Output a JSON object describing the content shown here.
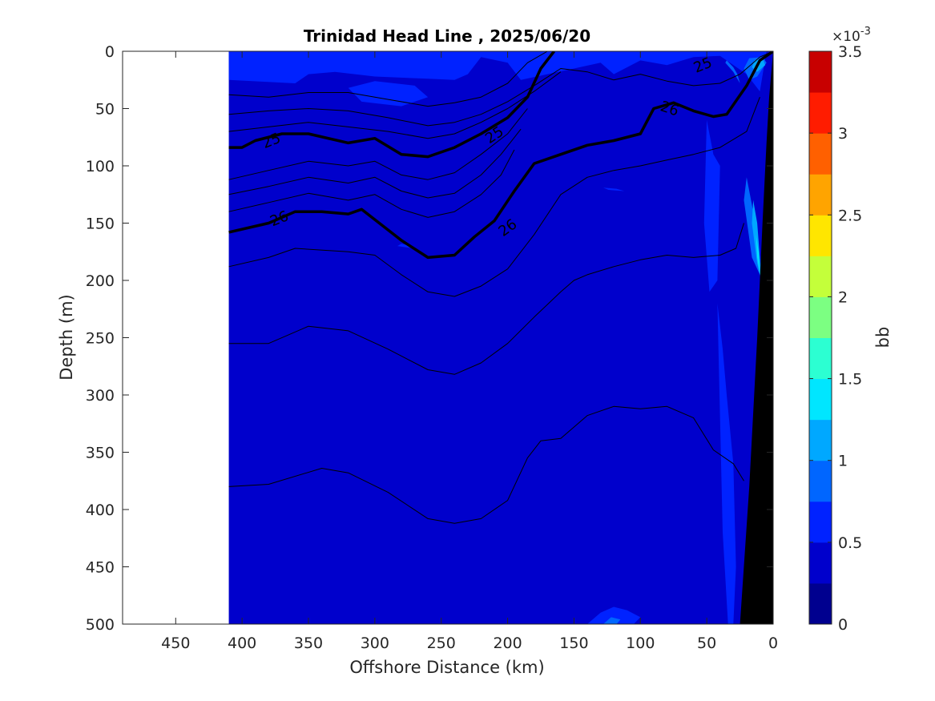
{
  "chart_data": {
    "type": "heatmap",
    "title": "Trinidad Head Line , 2025/06/20",
    "xlabel": "Offshore Distance (km)",
    "ylabel": "Depth (m)",
    "xlim": [
      490,
      0
    ],
    "ylim": [
      0,
      500
    ],
    "x_ticks": [
      "450",
      "400",
      "350",
      "300",
      "250",
      "200",
      "150",
      "100",
      "50",
      "0"
    ],
    "y_ticks": [
      "0",
      "50",
      "100",
      "150",
      "200",
      "250",
      "300",
      "350",
      "400",
      "450",
      "500"
    ],
    "data_x_extent": [
      410,
      0
    ],
    "colorbar": {
      "label": "bb",
      "exponent_label": "×10",
      "exponent_power": "-3",
      "range": [
        0,
        3.5
      ],
      "ticks": [
        "0",
        "0.5",
        "1",
        "1.5",
        "2",
        "2.5",
        "3",
        "3.5"
      ],
      "levels": 14,
      "colormap": [
        "#00008f",
        "#0000cc",
        "#0022ff",
        "#0066ff",
        "#00a8ff",
        "#00e6ff",
        "#2cffd2",
        "#7cff82",
        "#c4ff3a",
        "#ffe600",
        "#ffa400",
        "#ff6000",
        "#ff1c00",
        "#c80000"
      ]
    },
    "contours": [
      {
        "level": "25",
        "heavy": true,
        "x": [
          410,
          400,
          390,
          370,
          350,
          320,
          300,
          280,
          260,
          240,
          220,
          200,
          185,
          175,
          165
        ],
        "y": [
          84,
          84,
          78,
          72,
          72,
          80,
          76,
          90,
          92,
          84,
          72,
          58,
          40,
          15,
          0
        ]
      },
      {
        "level": "26",
        "heavy": true,
        "x": [
          410,
          380,
          360,
          340,
          320,
          310,
          280,
          260,
          240,
          225,
          210,
          195,
          180,
          160,
          140,
          120,
          100,
          90,
          75,
          60,
          45,
          35,
          20,
          10,
          0
        ],
        "y": [
          158,
          150,
          140,
          140,
          142,
          138,
          165,
          180,
          178,
          162,
          148,
          122,
          98,
          90,
          82,
          78,
          72,
          50,
          45,
          52,
          57,
          55,
          30,
          8,
          0
        ]
      },
      {
        "level": "",
        "heavy": false,
        "x": [
          410,
          380,
          350,
          320,
          290,
          260,
          240,
          220,
          200,
          185,
          170
        ],
        "y": [
          38,
          40,
          36,
          36,
          42,
          48,
          45,
          40,
          28,
          10,
          0
        ]
      },
      {
        "level": "",
        "heavy": false,
        "x": [
          410,
          380,
          350,
          320,
          290,
          260,
          240,
          220,
          200,
          180,
          160,
          140,
          120,
          100,
          80,
          60,
          40,
          25,
          10,
          0
        ],
        "y": [
          55,
          52,
          50,
          52,
          58,
          65,
          62,
          55,
          44,
          30,
          15,
          18,
          25,
          20,
          26,
          30,
          28,
          20,
          5,
          0
        ]
      },
      {
        "level": "",
        "heavy": false,
        "x": [
          410,
          380,
          350,
          320,
          290,
          260,
          240,
          220,
          200,
          180,
          160
        ],
        "y": [
          70,
          66,
          62,
          66,
          70,
          76,
          72,
          62,
          50,
          35,
          18
        ]
      },
      {
        "level": "",
        "heavy": false,
        "x": [
          410,
          380,
          350,
          320,
          300,
          280,
          260,
          240,
          220,
          200,
          185
        ],
        "y": [
          112,
          104,
          96,
          100,
          96,
          108,
          112,
          106,
          90,
          72,
          50
        ]
      },
      {
        "level": "",
        "heavy": false,
        "x": [
          410,
          380,
          350,
          320,
          300,
          280,
          260,
          240,
          220,
          205,
          190
        ],
        "y": [
          125,
          118,
          110,
          115,
          110,
          122,
          128,
          124,
          108,
          90,
          68
        ]
      },
      {
        "level": "",
        "heavy": false,
        "x": [
          410,
          380,
          350,
          320,
          300,
          280,
          260,
          240,
          220,
          205,
          195
        ],
        "y": [
          140,
          132,
          124,
          130,
          125,
          138,
          145,
          140,
          125,
          108,
          86
        ]
      },
      {
        "level": "",
        "heavy": false,
        "x": [
          410,
          380,
          360,
          320,
          300,
          280,
          260,
          240,
          220,
          200,
          180,
          160,
          140,
          120,
          100,
          80,
          60,
          40,
          20,
          10
        ],
        "y": [
          188,
          180,
          172,
          175,
          178,
          195,
          210,
          214,
          205,
          190,
          160,
          125,
          110,
          104,
          100,
          95,
          90,
          84,
          70,
          40
        ]
      },
      {
        "level": "",
        "heavy": false,
        "x": [
          410,
          380,
          350,
          320,
          290,
          260,
          240,
          220,
          200,
          180,
          160,
          150,
          140,
          120,
          100,
          80,
          60,
          40,
          28,
          22
        ],
        "y": [
          255,
          255,
          240,
          244,
          260,
          278,
          282,
          272,
          255,
          232,
          210,
          200,
          195,
          188,
          182,
          178,
          180,
          178,
          172,
          150
        ]
      },
      {
        "level": "",
        "heavy": false,
        "x": [
          410,
          380,
          340,
          320,
          290,
          260,
          240,
          220,
          200,
          185,
          175,
          160,
          140,
          120,
          100,
          80,
          60,
          45,
          30,
          22
        ],
        "y": [
          380,
          378,
          364,
          368,
          385,
          408,
          412,
          408,
          392,
          355,
          340,
          338,
          318,
          310,
          312,
          310,
          320,
          348,
          360,
          375
        ]
      }
    ],
    "contour_labels": [
      {
        "text": "25",
        "x": 378,
        "y": 78,
        "angle": -22
      },
      {
        "text": "25",
        "x": 210,
        "y": 73,
        "angle": -34
      },
      {
        "text": "25",
        "x": 53,
        "y": 12,
        "angle": -22
      },
      {
        "text": "26",
        "x": 372,
        "y": 146,
        "angle": -22
      },
      {
        "text": "26",
        "x": 200,
        "y": 154,
        "angle": -36
      },
      {
        "text": "26",
        "x": 78,
        "y": 50,
        "angle": 18
      }
    ],
    "patches": [
      {
        "level": 2,
        "x": [
          410,
          360,
          350,
          330,
          300,
          260,
          240,
          230,
          220,
          200,
          190,
          150,
          130,
          120,
          100,
          80,
          60,
          40,
          20,
          10,
          5,
          12,
          30,
          40,
          60,
          90,
          120,
          140,
          170,
          200,
          240,
          280,
          320,
          360,
          390,
          410
        ],
        "y": [
          25,
          28,
          20,
          18,
          22,
          24,
          25,
          20,
          5,
          10,
          25,
          15,
          10,
          20,
          8,
          12,
          5,
          4,
          20,
          35,
          0,
          0,
          0,
          0,
          0,
          0,
          0,
          0,
          0,
          0,
          0,
          0,
          0,
          0,
          0,
          0
        ]
      },
      {
        "level": 2,
        "x": [
          320,
          300,
          270,
          260,
          280,
          310,
          320
        ],
        "y": [
          32,
          26,
          30,
          40,
          48,
          44,
          32
        ]
      },
      {
        "level": 2,
        "x": [
          410,
          395,
          370,
          345,
          360,
          400,
          410
        ],
        "y": [
          0,
          8,
          4,
          0,
          0,
          0,
          0
        ]
      },
      {
        "level": 2,
        "x": [
          50,
          45,
          40,
          42,
          48,
          52,
          50
        ],
        "y": [
          60,
          90,
          100,
          200,
          210,
          150,
          60
        ]
      },
      {
        "level": 2,
        "x": [
          42,
          38,
          35,
          30,
          28,
          30,
          34,
          38,
          42
        ],
        "y": [
          220,
          260,
          300,
          360,
          450,
          500,
          500,
          420,
          220
        ]
      },
      {
        "level": 2,
        "x": [
          140,
          130,
          120,
          110,
          100,
          105,
          120,
          135,
          140
        ],
        "y": [
          500,
          490,
          485,
          488,
          494,
          500,
          500,
          500,
          500
        ]
      },
      {
        "level": 2,
        "x": [
          280,
          273,
          271,
          283,
          280
        ],
        "y": [
          168,
          170,
          172,
          170,
          168
        ]
      },
      {
        "level": 2,
        "x": [
          128,
          118,
          112,
          124,
          128
        ],
        "y": [
          119,
          120,
          122,
          121,
          119
        ]
      },
      {
        "level": 3,
        "x": [
          128,
          122,
          115,
          118,
          128,
          128
        ],
        "y": [
          500,
          494,
          496,
          500,
          500,
          500
        ]
      },
      {
        "level": 3,
        "x": [
          20,
          15,
          10,
          8,
          16,
          22,
          20
        ],
        "y": [
          110,
          140,
          180,
          200,
          180,
          130,
          110
        ]
      },
      {
        "level": 3,
        "x": [
          8,
          18,
          22,
          18,
          12,
          5,
          8
        ],
        "y": [
          5,
          6,
          15,
          25,
          22,
          10,
          5
        ]
      },
      {
        "level": 3,
        "x": [
          35,
          30,
          27,
          25,
          30,
          36,
          35
        ],
        "y": [
          8,
          14,
          20,
          28,
          18,
          10,
          8
        ]
      },
      {
        "level": 4,
        "x": [
          15,
          12,
          10,
          9,
          12,
          16,
          15
        ],
        "y": [
          130,
          150,
          180,
          200,
          185,
          150,
          130
        ]
      },
      {
        "level": 4,
        "x": [
          8,
          14,
          16,
          12,
          6,
          8
        ],
        "y": [
          6,
          8,
          14,
          18,
          12,
          6
        ]
      },
      {
        "level": 5,
        "x": [
          13,
          11,
          10,
          12,
          13
        ],
        "y": [
          160,
          175,
          195,
          180,
          160
        ]
      }
    ],
    "bathymetry": {
      "x": [
        0,
        3,
        5,
        8,
        12,
        18,
        25,
        27,
        0
      ],
      "y": [
        0,
        40,
        80,
        150,
        250,
        380,
        500,
        500,
        500
      ]
    }
  }
}
